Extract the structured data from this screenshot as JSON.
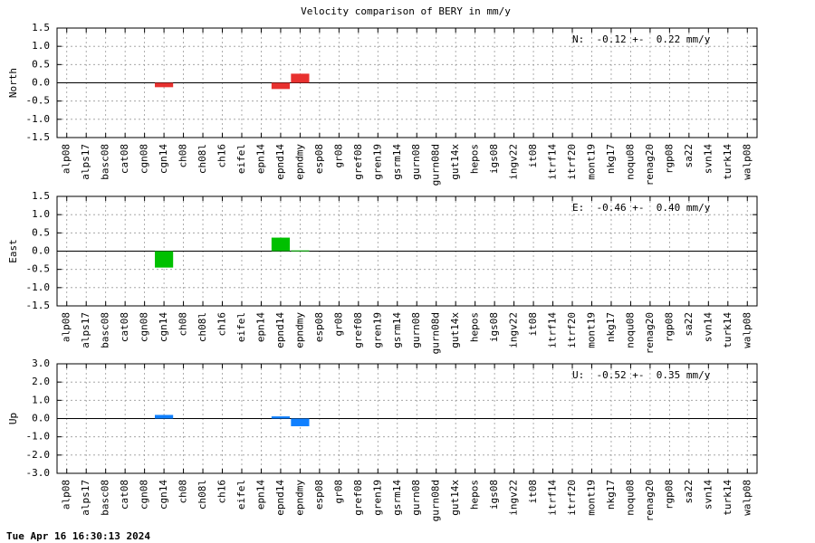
{
  "title": "Velocity comparison of BERY in mm/y",
  "footer": "Tue Apr 16 16:30:13 2024",
  "chart_data": [
    {
      "type": "bar",
      "y_label": "North",
      "annotation": "N:  -0.12 +-  0.22 mm/y",
      "color": "#e8312f",
      "grid": true,
      "categories": [
        "alp08",
        "alps17",
        "basc08",
        "cat08",
        "cgn08",
        "cgn14",
        "ch08",
        "ch08l",
        "ch16",
        "eifel",
        "epn14",
        "epnd14",
        "epndmy",
        "esp08",
        "gr08",
        "gref08",
        "gren19",
        "gsrm14",
        "gurn08",
        "gurn08d",
        "gut14x",
        "hepos",
        "igs08",
        "ingv22",
        "it08",
        "itrf14",
        "itrf20",
        "mont19",
        "nkg17",
        "noqu08",
        "renag20",
        "rgp08",
        "sa22",
        "svn14",
        "turk14",
        "walp08"
      ],
      "values": [
        null,
        null,
        null,
        null,
        null,
        -0.12,
        null,
        null,
        null,
        null,
        null,
        -0.17,
        0.25,
        null,
        null,
        null,
        null,
        null,
        null,
        null,
        null,
        null,
        null,
        null,
        null,
        null,
        null,
        null,
        null,
        null,
        null,
        null,
        null,
        null,
        null,
        null
      ],
      "ylim": [
        -1.5,
        1.5
      ],
      "yticks": [
        1.5,
        {
          "value": 1,
          "label": "1.0"
        },
        0.5,
        {
          "value": 0,
          "label": "0.0"
        },
        -0.5,
        {
          "value": -1,
          "label": "-1.0"
        },
        -1.5
      ]
    },
    {
      "type": "bar",
      "y_label": "East",
      "annotation": "E:  -0.46 +-  0.40 mm/y",
      "color": "#00c000",
      "grid": true,
      "categories": [
        "alp08",
        "alps17",
        "basc08",
        "cat08",
        "cgn08",
        "cgn14",
        "ch08",
        "ch08l",
        "ch16",
        "eifel",
        "epn14",
        "epnd14",
        "epndmy",
        "esp08",
        "gr08",
        "gref08",
        "gren19",
        "gsrm14",
        "gurn08",
        "gurn08d",
        "gut14x",
        "hepos",
        "igs08",
        "ingv22",
        "it08",
        "itrf14",
        "itrf20",
        "mont19",
        "nkg17",
        "noqu08",
        "renag20",
        "rgp08",
        "sa22",
        "svn14",
        "turk14",
        "walp08"
      ],
      "values": [
        null,
        null,
        null,
        null,
        null,
        -0.45,
        null,
        null,
        null,
        null,
        null,
        0.37,
        0.02,
        null,
        null,
        null,
        null,
        null,
        null,
        null,
        null,
        null,
        null,
        null,
        null,
        null,
        null,
        null,
        null,
        null,
        null,
        null,
        null,
        null,
        null,
        null
      ],
      "ylim": [
        -1.5,
        1.5
      ],
      "yticks": [
        1.5,
        {
          "value": 1,
          "label": "1.0"
        },
        0.5,
        {
          "value": 0,
          "label": "0.0"
        },
        -0.5,
        {
          "value": -1,
          "label": "-1.0"
        },
        -1.5
      ]
    },
    {
      "type": "bar",
      "y_label": "Up",
      "annotation": "U:  -0.52 +-  0.35 mm/y",
      "color": "#1080ff",
      "grid": true,
      "categories": [
        "alp08",
        "alps17",
        "basc08",
        "cat08",
        "cgn08",
        "cgn14",
        "ch08",
        "ch08l",
        "ch16",
        "eifel",
        "epn14",
        "epnd14",
        "epndmy",
        "esp08",
        "gr08",
        "gref08",
        "gren19",
        "gsrm14",
        "gurn08",
        "gurn08d",
        "gut14x",
        "hepos",
        "igs08",
        "ingv22",
        "it08",
        "itrf14",
        "itrf20",
        "mont19",
        "nkg17",
        "noqu08",
        "renag20",
        "rgp08",
        "sa22",
        "svn14",
        "turk14",
        "walp08"
      ],
      "values": [
        null,
        null,
        null,
        null,
        null,
        0.2,
        null,
        null,
        null,
        null,
        null,
        0.12,
        -0.42,
        null,
        null,
        null,
        null,
        null,
        null,
        null,
        null,
        null,
        null,
        null,
        null,
        null,
        null,
        null,
        null,
        null,
        null,
        null,
        null,
        null,
        null,
        null
      ],
      "ylim": [
        -3,
        3
      ],
      "yticks": [
        {
          "value": 3,
          "label": "3.0"
        },
        {
          "value": 2,
          "label": "2.0"
        },
        {
          "value": 1,
          "label": "1.0"
        },
        {
          "value": 0,
          "label": "0.0"
        },
        {
          "value": -1,
          "label": "-1.0"
        },
        {
          "value": -2,
          "label": "-2.0"
        },
        {
          "value": -3,
          "label": "-3.0"
        }
      ]
    }
  ]
}
